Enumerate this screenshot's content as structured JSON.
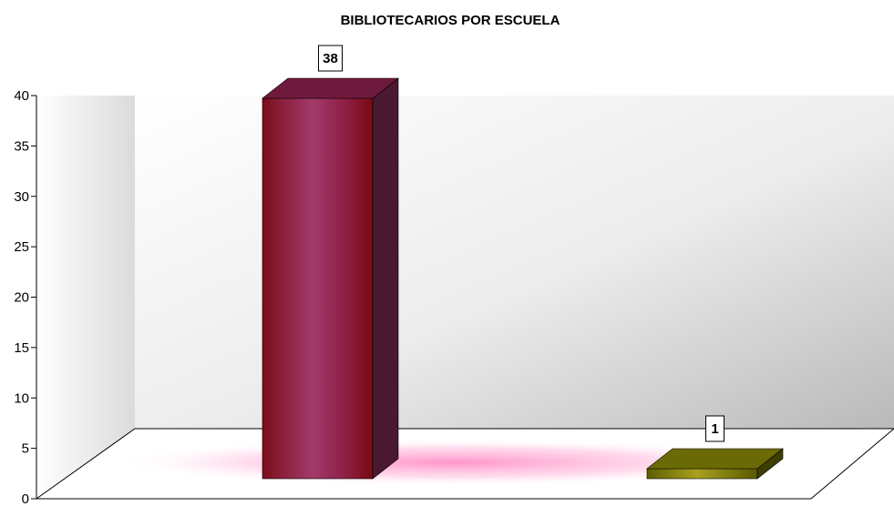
{
  "chart_data": {
    "type": "bar",
    "style": "3d-column",
    "title": "BIBLIOTECARIOS POR ESCUELA",
    "xlabel": "",
    "ylabel": "",
    "categories": [
      "",
      ""
    ],
    "series": [
      {
        "values": [
          38,
          1
        ]
      }
    ],
    "bar_colors": [
      "#9b2f62",
      "#8a8a10"
    ],
    "data_labels": [
      "38",
      "1"
    ],
    "ylim": [
      0,
      40
    ],
    "yticks": [
      0,
      5,
      10,
      15,
      20,
      25,
      30,
      35,
      40
    ],
    "grid": false,
    "legend": "none"
  }
}
